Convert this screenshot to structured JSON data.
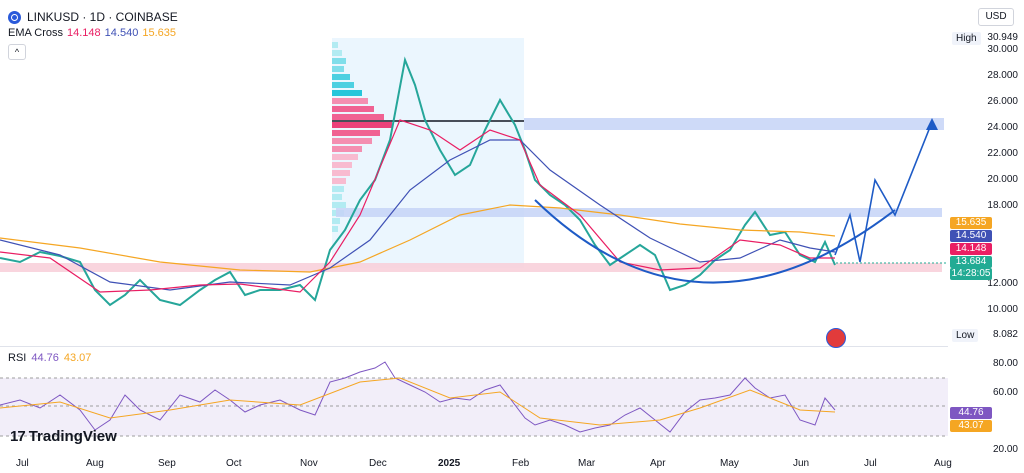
{
  "header": {
    "title": "LINKUSD · 1D · COINBASE",
    "indicator_name": "EMA Cross",
    "ema_values": [
      "14.148",
      "14.540",
      "15.635"
    ],
    "ema_colors": [
      "#e91e63",
      "#3f51b5",
      "#f5a623"
    ]
  },
  "currency": "USD",
  "price_axis": {
    "ticks": [
      "30.000",
      "28.000",
      "26.000",
      "24.000",
      "22.000",
      "20.000",
      "18.000",
      "12.000",
      "10.000"
    ],
    "high_label": "High",
    "high_value": "30.949",
    "low_label": "Low",
    "low_value": "8.082",
    "tags": {
      "ema_slow": "15.635",
      "ema_mid": "14.540",
      "ema_fast": "14.148",
      "last_price": "13.684",
      "countdown": "14:28:05"
    }
  },
  "rsi": {
    "label": "RSI",
    "value": "44.76",
    "ma_value": "43.07",
    "ticks": [
      "80.00",
      "60.00",
      "20.00"
    ]
  },
  "x_axis": [
    "Jul",
    "Aug",
    "Sep",
    "Oct",
    "Nov",
    "Dec",
    "2025",
    "Feb",
    "Mar",
    "Apr",
    "May",
    "Jun",
    "Jul",
    "Aug"
  ],
  "branding": "TradingView",
  "colors": {
    "up": "#26a69a",
    "down": "#ef5350",
    "ema_fast": "#e91e63",
    "ema_mid": "#3f51b5",
    "ema_slow": "#f5a623",
    "last": "#22ab94",
    "zone_blue": "#c5d4f7",
    "zone_pink": "#f8d0da",
    "drawing": "#1e5bc6"
  }
}
